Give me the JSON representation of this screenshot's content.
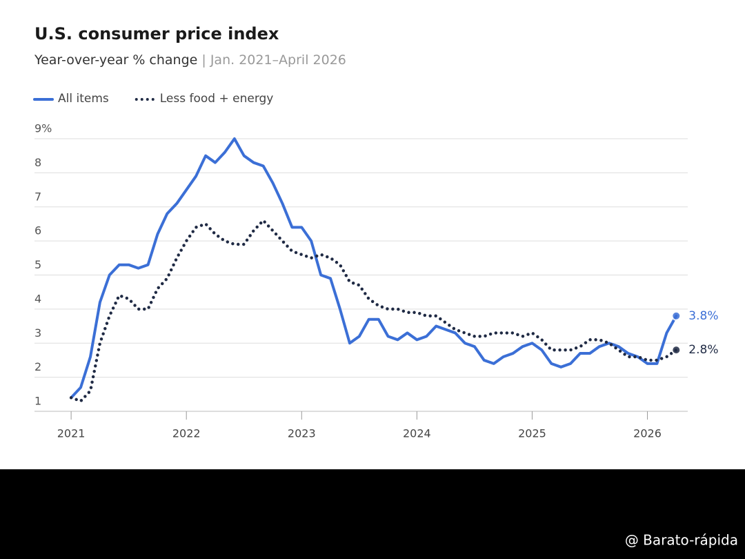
{
  "chart_data": {
    "type": "line",
    "title": "U.S. consumer price index",
    "subtitle": "Year-over-year % change",
    "subtitle_range": "Jan. 2021–April 2026",
    "x": [
      2021,
      2021.083,
      2021.167,
      2021.25,
      2021.333,
      2021.417,
      2021.5,
      2021.583,
      2021.667,
      2021.75,
      2021.833,
      2021.917,
      2022,
      2022.083,
      2022.167,
      2022.25,
      2022.333,
      2022.417,
      2022.5,
      2022.583,
      2022.667,
      2022.75,
      2022.833,
      2022.917,
      2023,
      2023.083,
      2023.167,
      2023.25,
      2023.333,
      2023.417,
      2023.5,
      2023.583,
      2023.667,
      2023.75,
      2023.833,
      2023.917,
      2024,
      2024.083,
      2024.167,
      2024.25,
      2024.333,
      2024.417,
      2024.5,
      2024.583,
      2024.667,
      2024.75,
      2024.833,
      2024.917,
      2025,
      2025.083,
      2025.167,
      2025.25,
      2025.333,
      2025.417,
      2025.5,
      2025.583,
      2025.667,
      2025.75,
      2025.833,
      2025.917,
      2026,
      2026.083,
      2026.167,
      2026.25
    ],
    "series": [
      {
        "name": "All items",
        "color": "#3b6fd6",
        "style": "solid",
        "values": [
          1.4,
          1.7,
          2.6,
          4.2,
          5.0,
          5.3,
          5.3,
          5.2,
          5.3,
          6.2,
          6.8,
          7.1,
          7.5,
          7.9,
          8.5,
          8.3,
          8.6,
          9.0,
          8.5,
          8.3,
          8.2,
          7.7,
          7.1,
          6.4,
          6.4,
          6.0,
          5.0,
          4.9,
          4.0,
          3.0,
          3.2,
          3.7,
          3.7,
          3.2,
          3.1,
          3.3,
          3.1,
          3.2,
          3.5,
          3.4,
          3.3,
          3.0,
          2.9,
          2.5,
          2.4,
          2.6,
          2.7,
          2.9,
          3.0,
          2.8,
          2.4,
          2.3,
          2.4,
          2.7,
          2.7,
          2.9,
          3.0,
          2.9,
          2.7,
          2.6,
          2.4,
          2.4,
          3.3,
          3.8
        ],
        "value_labels": [
          null,
          null,
          null,
          null,
          null,
          null,
          null,
          null,
          null,
          null,
          null,
          null,
          null,
          null,
          null,
          null,
          null,
          null,
          null,
          null,
          null,
          null,
          null,
          null,
          null,
          null,
          null,
          null,
          null,
          null,
          null,
          null,
          null,
          null,
          null,
          null,
          null,
          null,
          null,
          null,
          null,
          null,
          null,
          null,
          null,
          null,
          null,
          null,
          null,
          null,
          null,
          null,
          null,
          null,
          null,
          null,
          null,
          null,
          null,
          null,
          null,
          null,
          null,
          "3.8%"
        ]
      },
      {
        "name": "Less food + energy",
        "color": "#1f2a44",
        "style": "dotted",
        "values": [
          1.4,
          1.3,
          1.6,
          3.0,
          3.8,
          4.4,
          4.3,
          4.0,
          4.0,
          4.6,
          4.9,
          5.5,
          6.0,
          6.4,
          6.5,
          6.2,
          6.0,
          5.9,
          5.9,
          6.3,
          6.6,
          6.3,
          6.0,
          5.7,
          5.6,
          5.5,
          5.6,
          5.5,
          5.3,
          4.8,
          4.7,
          4.3,
          4.1,
          4.0,
          4.0,
          3.9,
          3.9,
          3.8,
          3.8,
          3.6,
          3.4,
          3.3,
          3.2,
          3.2,
          3.3,
          3.3,
          3.3,
          3.2,
          3.3,
          3.1,
          2.8,
          2.8,
          2.8,
          2.9,
          3.1,
          3.1,
          3.0,
          2.8,
          2.6,
          2.6,
          2.5,
          2.5,
          2.6,
          2.8
        ],
        "value_labels": [
          null,
          null,
          null,
          null,
          null,
          null,
          null,
          null,
          null,
          null,
          null,
          null,
          null,
          null,
          null,
          null,
          null,
          null,
          null,
          null,
          null,
          null,
          null,
          null,
          null,
          null,
          null,
          null,
          null,
          null,
          null,
          null,
          null,
          null,
          null,
          null,
          null,
          null,
          null,
          null,
          null,
          null,
          null,
          null,
          null,
          null,
          null,
          null,
          null,
          null,
          null,
          null,
          null,
          null,
          null,
          null,
          null,
          null,
          null,
          null,
          null,
          null,
          null,
          "2.8%"
        ]
      }
    ],
    "xlim": [
      2020.7,
      2026.35
    ],
    "xticks": [
      2021,
      2022,
      2023,
      2024,
      2025,
      2026
    ],
    "ylim": [
      1,
      9
    ],
    "yticks": [
      1,
      2,
      3,
      4,
      5,
      6,
      7,
      8,
      {
        "value": 9,
        "label": "9%"
      }
    ],
    "grid": true,
    "legend": "top-left"
  },
  "watermark": "@ Barato-rápida"
}
